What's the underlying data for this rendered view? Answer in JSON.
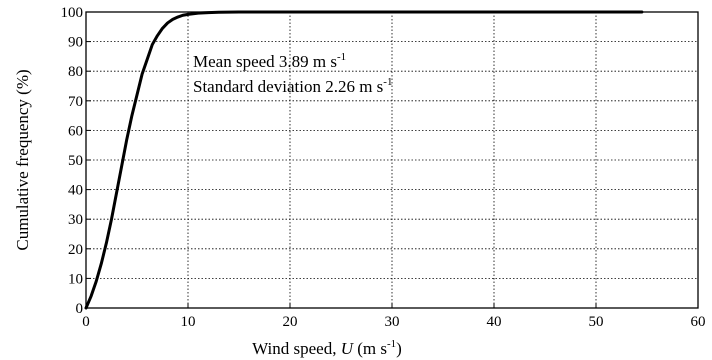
{
  "chart_data": {
    "type": "line",
    "title": "",
    "xlabel": {
      "prefix": "Wind speed, ",
      "symbol": "U",
      "unit_base": " (m s",
      "unit_sup": "-1",
      "unit_close": ")"
    },
    "ylabel": "Cumulative frequency (%)",
    "xlim": [
      0,
      60
    ],
    "ylim": [
      0,
      100
    ],
    "xticks": [
      0,
      10,
      20,
      30,
      40,
      50,
      60
    ],
    "yticks": [
      0,
      10,
      20,
      30,
      40,
      50,
      60,
      70,
      80,
      90,
      100
    ],
    "grid": true,
    "annotations": [
      {
        "text": "Mean speed 3.89 m s",
        "sup": "-1"
      },
      {
        "text": "Standard deviation 2.26 m s",
        "sup": "-1"
      }
    ],
    "series": [
      {
        "color": "#000000",
        "x": [
          0,
          0.5,
          1,
          1.5,
          2,
          2.5,
          3,
          3.5,
          4,
          4.5,
          5,
          5.5,
          6,
          6.5,
          7,
          7.5,
          8,
          8.5,
          9,
          9.5,
          10,
          11,
          12,
          13,
          15,
          20,
          30,
          40,
          50,
          54.5
        ],
        "y": [
          0,
          4,
          9,
          15,
          22,
          30,
          39,
          48,
          57,
          65,
          72,
          79,
          84,
          89,
          92,
          94.5,
          96.3,
          97.5,
          98.3,
          98.9,
          99.2,
          99.6,
          99.8,
          99.9,
          100,
          100,
          100,
          100,
          100,
          100
        ]
      }
    ]
  }
}
